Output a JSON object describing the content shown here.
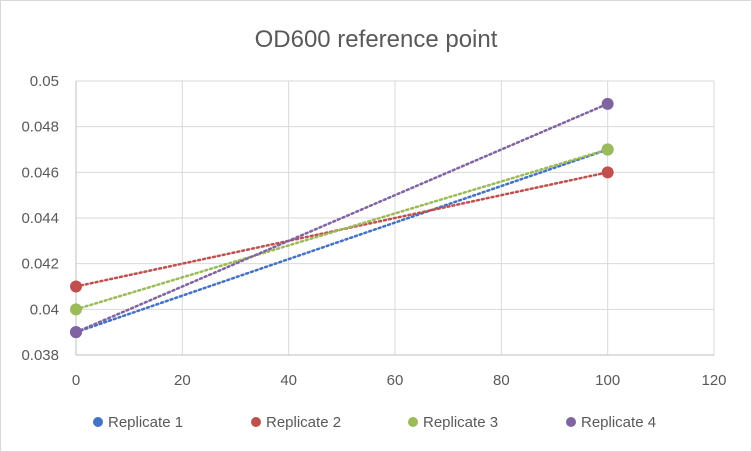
{
  "chart_data": {
    "type": "scatter",
    "title": "OD600 reference point",
    "xlabel": "",
    "ylabel": "",
    "xlim": [
      0,
      120
    ],
    "ylim": [
      0.038,
      0.05
    ],
    "x_ticks": [
      0,
      20,
      40,
      60,
      80,
      100,
      120
    ],
    "y_ticks": [
      0.038,
      0.04,
      0.042,
      0.044,
      0.046,
      0.048,
      0.05
    ],
    "x_tick_labels": [
      "0",
      "20",
      "40",
      "60",
      "80",
      "100",
      "120"
    ],
    "y_tick_labels": [
      "0.038",
      "0.04",
      "0.042",
      "0.044",
      "0.046",
      "0.048",
      "0.05"
    ],
    "grid": true,
    "legend_position": "bottom",
    "trendline": "linear, dotted",
    "series": [
      {
        "name": "Replicate 1",
        "color": "#4472C4",
        "x": [
          0,
          100
        ],
        "y": [
          0.039,
          0.047
        ]
      },
      {
        "name": "Replicate 2",
        "color": "#C0504D",
        "x": [
          0,
          100
        ],
        "y": [
          0.041,
          0.046
        ]
      },
      {
        "name": "Replicate 3",
        "color": "#9BBB59",
        "x": [
          0,
          100
        ],
        "y": [
          0.04,
          0.047
        ]
      },
      {
        "name": "Replicate 4",
        "color": "#8064A2",
        "x": [
          0,
          100
        ],
        "y": [
          0.039,
          0.049
        ]
      }
    ]
  }
}
